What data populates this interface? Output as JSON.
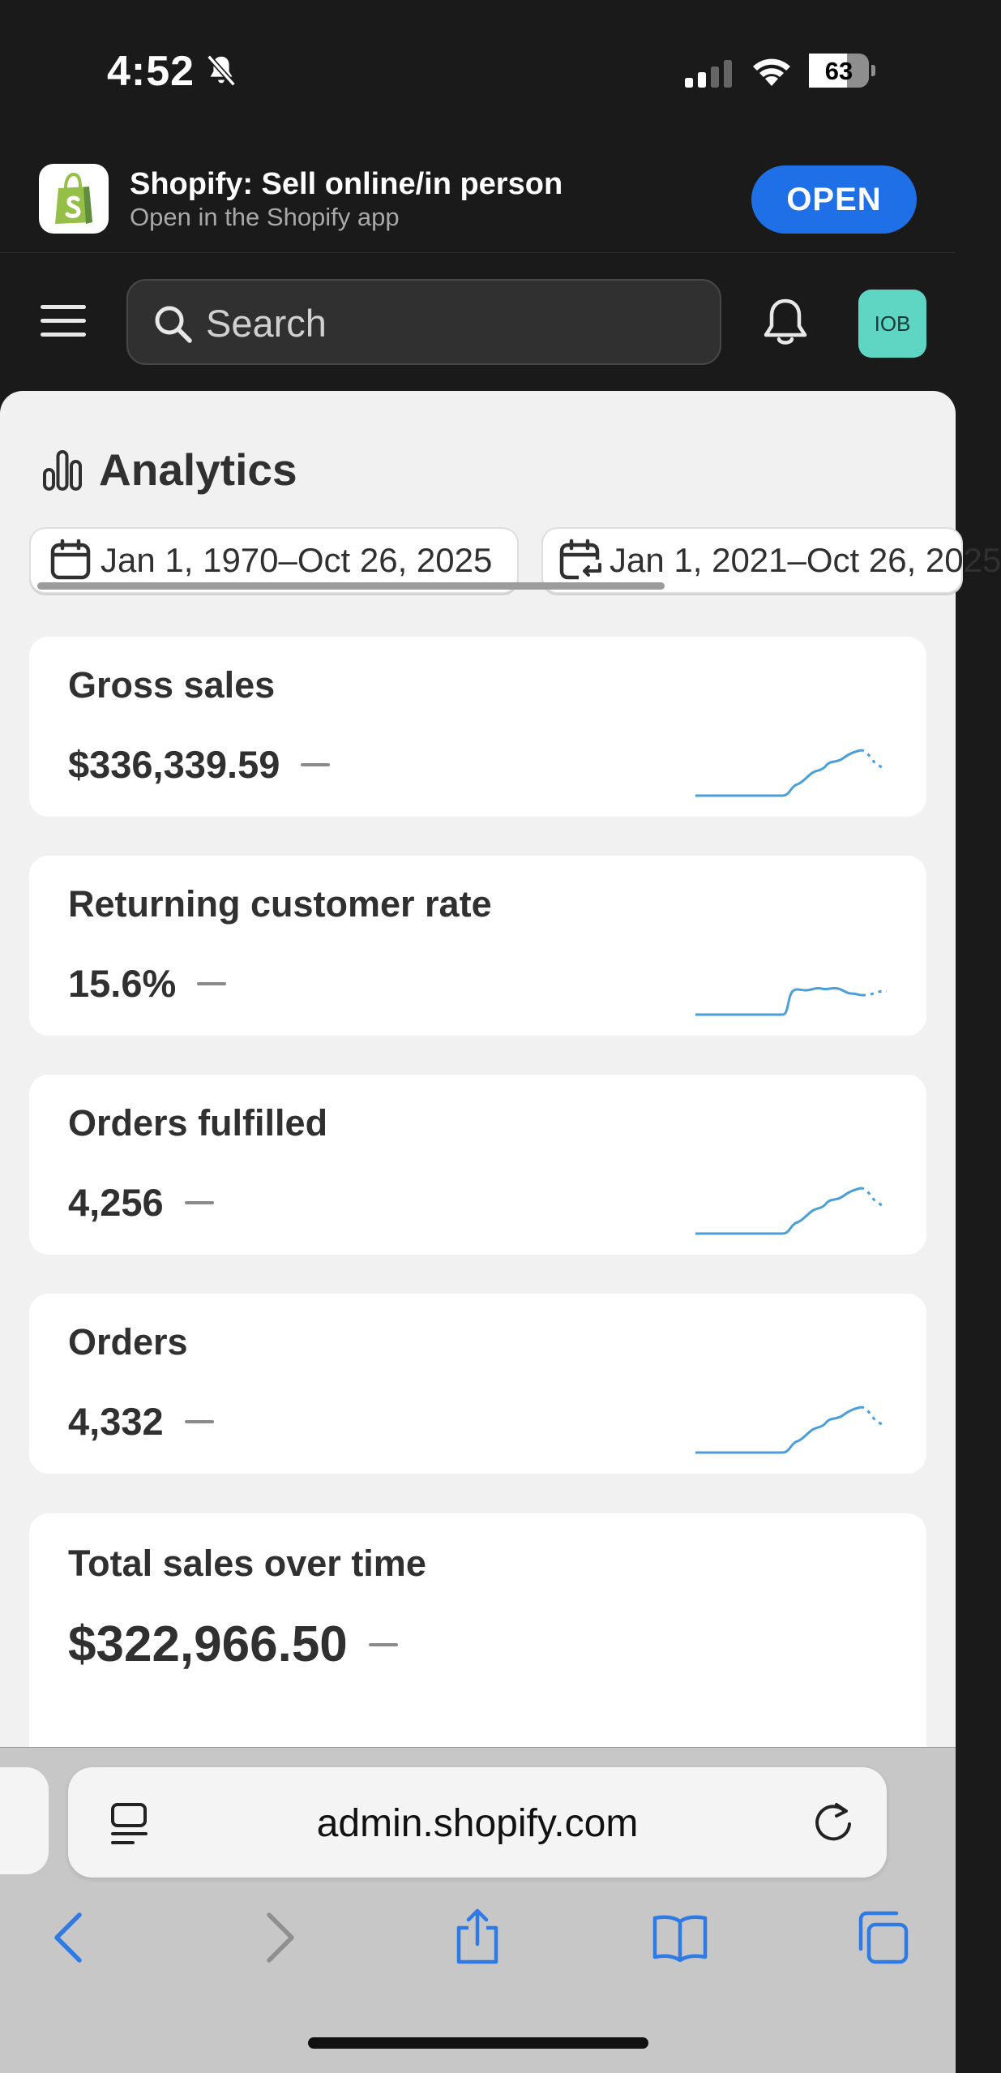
{
  "status_bar": {
    "time": "4:52",
    "battery_level": "63",
    "battery_fraction": 0.63
  },
  "app_banner": {
    "app_name": "Shopify: Sell online/in person",
    "subtitle": "Open in the Shopify app",
    "open_label": "OPEN"
  },
  "topnav": {
    "search_placeholder": "Search",
    "avatar_initials": "IOB"
  },
  "page": {
    "title": "Analytics",
    "date_ranges": [
      "Jan 1, 1970–Oct 26, 2025",
      "Jan 1, 2021–Oct 26, 2025"
    ]
  },
  "metrics": [
    {
      "title": "Gross sales",
      "value": "$336,339.59"
    },
    {
      "title": "Returning customer rate",
      "value": "15.6%"
    },
    {
      "title": "Orders fulfilled",
      "value": "4,256"
    },
    {
      "title": "Orders",
      "value": "4,332"
    }
  ],
  "total_sales": {
    "title": "Total sales over time",
    "value": "$322,966.50"
  },
  "browser": {
    "url": "admin.shopify.com"
  },
  "colors": {
    "accent_blue": "#1f6fe6",
    "sparkline_blue": "#4a9fd8",
    "avatar_teal": "#5fd6c4"
  }
}
